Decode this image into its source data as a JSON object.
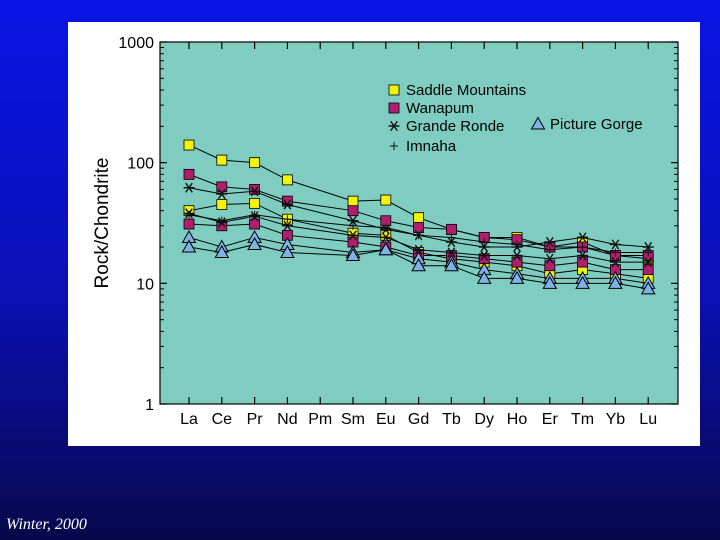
{
  "colors": {
    "background_top": "#0a14e6",
    "background_bottom": "#06084a",
    "panel": "#ffffff",
    "plot_area": "#7ecdc0",
    "saddle_mountains": "#f2f20a",
    "wanapum": "#b01e6e",
    "grande_ronde": "#111111",
    "imnaha": "#111111",
    "picture_gorge": "#7fb2e6"
  },
  "credit": "Winter, 2000",
  "chart_data": {
    "type": "line",
    "title": "",
    "xlabel": "",
    "ylabel": "Rock/Chondrite",
    "y_scale": "log",
    "ylim": [
      1,
      1000
    ],
    "y_ticks": [
      "1",
      "10",
      "100",
      "1000"
    ],
    "categories": [
      "La",
      "Ce",
      "Pr",
      "Nd",
      "Pm",
      "Sm",
      "Eu",
      "Gd",
      "Tb",
      "Dy",
      "Ho",
      "Er",
      "Tm",
      "Yb",
      "Lu"
    ],
    "grid": false,
    "legend_position": "top-right",
    "series": [
      {
        "name": "Saddle Mountains",
        "group": "saddle_mountains",
        "marker": "square",
        "values": [
          140,
          105,
          100,
          72,
          null,
          48,
          49,
          35,
          28,
          24,
          24,
          20,
          22,
          17,
          16
        ]
      },
      {
        "name": "Saddle Mountains",
        "group": "saddle_mountains",
        "marker": "square",
        "values": [
          40,
          45,
          46,
          34,
          null,
          26,
          25,
          18,
          16,
          15,
          14,
          12,
          13,
          12,
          11
        ]
      },
      {
        "name": "Wanapum",
        "group": "wanapum",
        "marker": "square",
        "values": [
          80,
          63,
          60,
          48,
          null,
          40,
          33,
          29,
          28,
          24,
          23,
          20,
          20,
          17,
          17
        ]
      },
      {
        "name": "Wanapum",
        "group": "wanapum",
        "marker": "square",
        "values": [
          31,
          30,
          31,
          25,
          null,
          22,
          20,
          17,
          17,
          16,
          15,
          14,
          15,
          13,
          13
        ]
      },
      {
        "name": "Grande Ronde",
        "group": "grande_ronde",
        "marker": "asterisk",
        "values": [
          62,
          55,
          58,
          45,
          null,
          33,
          28,
          25,
          22,
          20,
          20,
          22,
          24,
          21,
          20
        ]
      },
      {
        "name": "Grande Ronde",
        "group": "grande_ronde",
        "marker": "asterisk",
        "values": [
          38,
          32,
          36,
          30,
          null,
          25,
          24,
          19,
          18,
          17,
          17,
          16,
          17,
          15,
          15
        ]
      },
      {
        "name": "Imnaha",
        "group": "imnaha",
        "marker": "cross",
        "values": [
          37,
          33,
          37,
          34,
          null,
          30,
          29,
          25,
          24,
          22,
          21,
          19,
          20,
          18,
          18
        ]
      },
      {
        "name": "Picture Gorge",
        "group": "picture_gorge",
        "marker": "triangle",
        "values": [
          24,
          20,
          24,
          21,
          null,
          18,
          19,
          16,
          15,
          13,
          12,
          11,
          11,
          11,
          10
        ]
      },
      {
        "name": "Picture Gorge",
        "group": "picture_gorge",
        "marker": "triangle",
        "values": [
          20,
          18,
          21,
          18,
          null,
          17,
          19,
          14,
          14,
          11,
          11,
          10,
          10,
          10,
          9
        ]
      }
    ],
    "legend": [
      {
        "label": "Saddle Mountains",
        "group": "saddle_mountains",
        "marker": "square"
      },
      {
        "label": "Wanapum",
        "group": "wanapum",
        "marker": "square"
      },
      {
        "label": "Grande Ronde",
        "group": "grande_ronde",
        "marker": "asterisk"
      },
      {
        "label": "Imnaha",
        "group": "imnaha",
        "marker": "cross"
      },
      {
        "label": "Picture Gorge",
        "group": "picture_gorge",
        "marker": "triangle"
      }
    ]
  }
}
